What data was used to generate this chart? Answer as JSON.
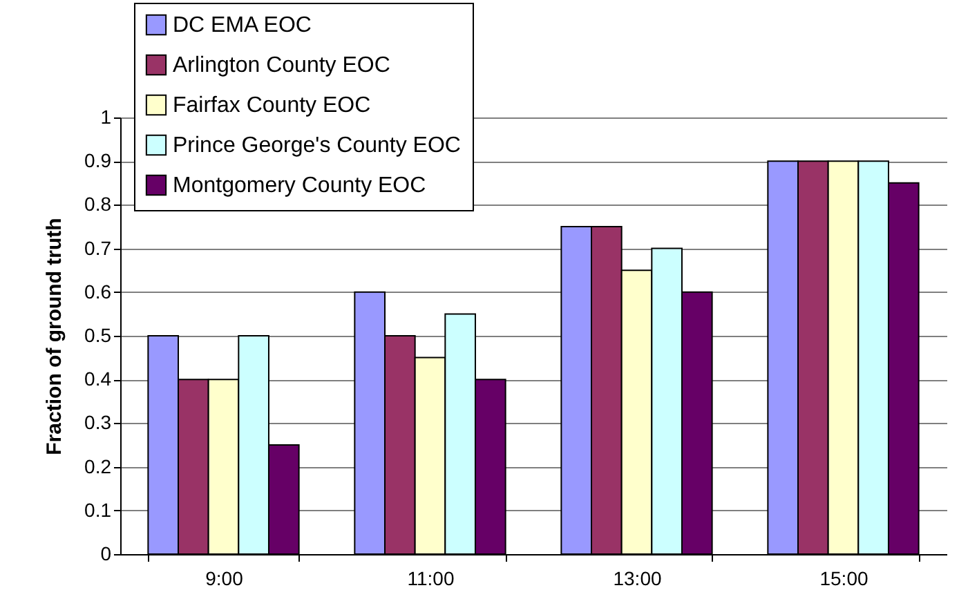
{
  "chart_data": {
    "type": "bar",
    "ylabel": "Fraction of ground truth",
    "categories": [
      "9:00",
      "11:00",
      "13:00",
      "15:00"
    ],
    "series": [
      {
        "name": "DC EMA EOC",
        "color": "#9999ff",
        "values": [
          0.5,
          0.6,
          0.75,
          0.9
        ]
      },
      {
        "name": "Arlington County EOC",
        "color": "#993366",
        "values": [
          0.4,
          0.5,
          0.75,
          0.9
        ]
      },
      {
        "name": "Fairfax County EOC",
        "color": "#ffffcc",
        "values": [
          0.4,
          0.45,
          0.65,
          0.9
        ]
      },
      {
        "name": "Prince George's County EOC",
        "color": "#ccffff",
        "values": [
          0.5,
          0.55,
          0.7,
          0.9
        ]
      },
      {
        "name": "Montgomery County EOC",
        "color": "#660066",
        "values": [
          0.25,
          0.4,
          0.6,
          0.85
        ]
      }
    ],
    "ylim": [
      0,
      1
    ],
    "yticks": [
      0,
      0.1,
      0.2,
      0.3,
      0.4,
      0.5,
      0.6,
      0.7,
      0.8,
      0.9,
      1
    ],
    "grid": "y",
    "legend": "top left"
  }
}
